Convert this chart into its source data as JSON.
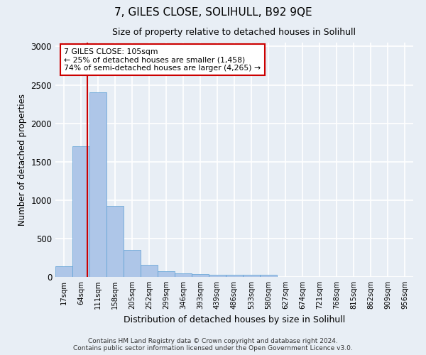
{
  "title": "7, GILES CLOSE, SOLIHULL, B92 9QE",
  "subtitle": "Size of property relative to detached houses in Solihull",
  "xlabel": "Distribution of detached houses by size in Solihull",
  "ylabel": "Number of detached properties",
  "bin_labels": [
    "17sqm",
    "64sqm",
    "111sqm",
    "158sqm",
    "205sqm",
    "252sqm",
    "299sqm",
    "346sqm",
    "393sqm",
    "439sqm",
    "486sqm",
    "533sqm",
    "580sqm",
    "627sqm",
    "674sqm",
    "721sqm",
    "768sqm",
    "815sqm",
    "862sqm",
    "909sqm",
    "956sqm"
  ],
  "bar_heights": [
    140,
    1700,
    2400,
    920,
    350,
    160,
    75,
    50,
    35,
    25,
    25,
    30,
    30,
    0,
    0,
    0,
    0,
    0,
    0,
    0,
    0
  ],
  "bar_color": "#aec6e8",
  "bar_edge_color": "#5a9fd4",
  "vline_color": "#cc0000",
  "annotation_text": "7 GILES CLOSE: 105sqm\n← 25% of detached houses are smaller (1,458)\n74% of semi-detached houses are larger (4,265) →",
  "annotation_box_color": "#cc0000",
  "ylim": [
    0,
    3050
  ],
  "yticks": [
    0,
    500,
    1000,
    1500,
    2000,
    2500,
    3000
  ],
  "footer_line1": "Contains HM Land Registry data © Crown copyright and database right 2024.",
  "footer_line2": "Contains public sector information licensed under the Open Government Licence v3.0.",
  "background_color": "#e8eef5",
  "grid_color": "#ffffff"
}
